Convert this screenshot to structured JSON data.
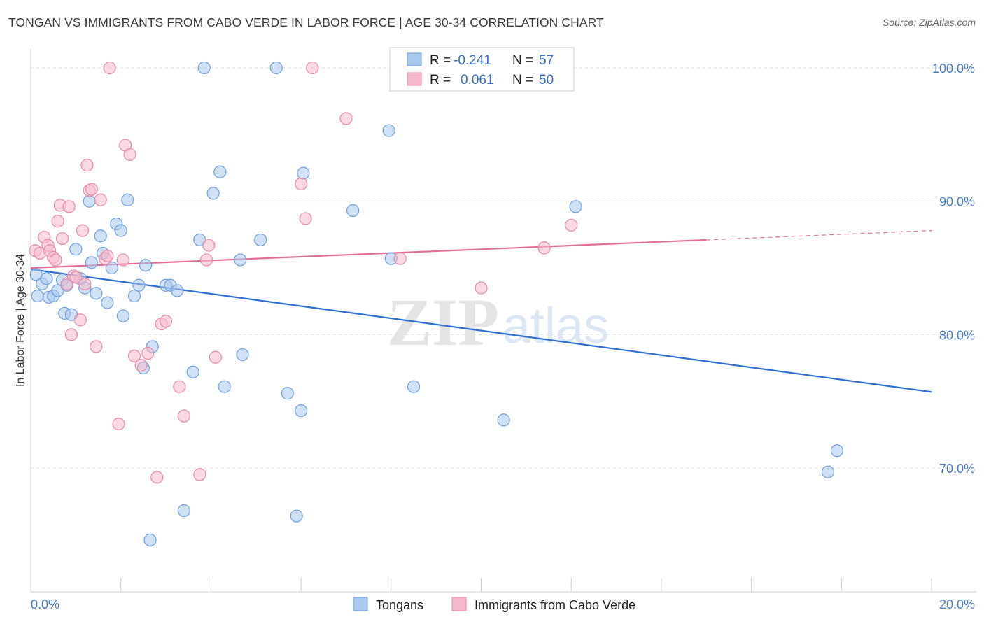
{
  "title": "TONGAN VS IMMIGRANTS FROM CABO VERDE IN LABOR FORCE | AGE 30-34 CORRELATION CHART",
  "source": "Source: ZipAtlas.com",
  "watermark_zip": "ZIP",
  "watermark_atlas": "atlas",
  "colors": {
    "blue_fill": "#a9c8ee",
    "blue_stroke": "#6f9fdc",
    "blue_line": "#2f6fd0",
    "pink_fill": "#f6b9cb",
    "pink_stroke": "#e889a8",
    "pink_line": "#e0709a",
    "grid": "#dddddd",
    "axis_text": "#4a7bc8"
  },
  "legend_top": {
    "rows": [
      {
        "r_label": "R =",
        "r_value": "-0.241",
        "n_label": "N =",
        "n_value": "57"
      },
      {
        "r_label": "R =",
        "r_value": "0.061",
        "n_label": "N =",
        "n_value": "50"
      }
    ]
  },
  "chart_data": {
    "type": "scatter",
    "title": "TONGAN VS IMMIGRANTS FROM CABO VERDE IN LABOR FORCE | AGE 30-34 CORRELATION CHART",
    "xlabel": "",
    "ylabel": "In Labor Force | Age 30-34",
    "xlim": [
      0,
      20
    ],
    "ylim": [
      60,
      101
    ],
    "x_tick_labels": [
      {
        "value": 0,
        "label": "0.0%"
      },
      {
        "value": 20,
        "label": "20.0%"
      }
    ],
    "y_tick_labels": [
      {
        "value": 100,
        "label": "100.0%"
      },
      {
        "value": 90,
        "label": "90.0%"
      },
      {
        "value": 80,
        "label": "80.0%"
      },
      {
        "value": 70,
        "label": "70.0%"
      }
    ],
    "series": [
      {
        "name": "Tongans",
        "color": "#a9c8ee",
        "points": [
          [
            0.12,
            84.5
          ],
          [
            0.25,
            83.8
          ],
          [
            0.35,
            84.2
          ],
          [
            0.4,
            82.8
          ],
          [
            0.5,
            82.9
          ],
          [
            0.6,
            83.3
          ],
          [
            0.7,
            84.1
          ],
          [
            0.75,
            81.6
          ],
          [
            0.8,
            83.7
          ],
          [
            0.9,
            81.5
          ],
          [
            1.0,
            86.4
          ],
          [
            1.1,
            84.2
          ],
          [
            1.2,
            83.5
          ],
          [
            1.3,
            90.0
          ],
          [
            1.35,
            85.4
          ],
          [
            1.45,
            83.1
          ],
          [
            1.55,
            87.4
          ],
          [
            1.6,
            86.1
          ],
          [
            1.7,
            82.4
          ],
          [
            1.8,
            85.0
          ],
          [
            1.9,
            88.3
          ],
          [
            2.0,
            87.8
          ],
          [
            2.05,
            81.4
          ],
          [
            2.15,
            90.1
          ],
          [
            2.3,
            82.9
          ],
          [
            2.4,
            83.7
          ],
          [
            2.55,
            85.2
          ],
          [
            2.7,
            79.1
          ],
          [
            3.0,
            83.7
          ],
          [
            3.1,
            83.7
          ],
          [
            3.25,
            83.3
          ],
          [
            3.6,
            77.2
          ],
          [
            3.75,
            87.1
          ],
          [
            3.85,
            100.0
          ],
          [
            4.05,
            90.6
          ],
          [
            4.2,
            92.2
          ],
          [
            4.3,
            76.1
          ],
          [
            4.65,
            85.6
          ],
          [
            4.7,
            78.5
          ],
          [
            5.1,
            87.1
          ],
          [
            5.45,
            100.0
          ],
          [
            5.7,
            75.6
          ],
          [
            6.0,
            74.3
          ],
          [
            6.05,
            92.1
          ],
          [
            7.15,
            89.3
          ],
          [
            7.95,
            95.3
          ],
          [
            8.0,
            85.7
          ],
          [
            8.5,
            76.1
          ],
          [
            10.5,
            73.6
          ],
          [
            12.1,
            89.6
          ],
          [
            17.7,
            69.7
          ],
          [
            17.9,
            71.3
          ],
          [
            3.4,
            66.8
          ],
          [
            5.9,
            66.4
          ],
          [
            2.65,
            64.6
          ],
          [
            2.5,
            77.5
          ],
          [
            0.15,
            82.9
          ]
        ]
      },
      {
        "name": "Immigrants from Cabo Verde",
        "color": "#f6b9cb",
        "points": [
          [
            0.1,
            86.3
          ],
          [
            0.2,
            86.1
          ],
          [
            0.3,
            87.3
          ],
          [
            0.38,
            86.7
          ],
          [
            0.42,
            86.3
          ],
          [
            0.5,
            85.8
          ],
          [
            0.55,
            85.6
          ],
          [
            0.6,
            88.5
          ],
          [
            0.65,
            89.7
          ],
          [
            0.7,
            87.2
          ],
          [
            0.8,
            83.8
          ],
          [
            0.85,
            89.6
          ],
          [
            0.9,
            80.0
          ],
          [
            0.95,
            84.4
          ],
          [
            1.0,
            84.3
          ],
          [
            1.1,
            81.1
          ],
          [
            1.15,
            87.8
          ],
          [
            1.25,
            92.7
          ],
          [
            1.3,
            90.8
          ],
          [
            1.35,
            90.9
          ],
          [
            1.45,
            79.1
          ],
          [
            1.55,
            90.1
          ],
          [
            1.65,
            85.7
          ],
          [
            1.75,
            100.0
          ],
          [
            1.95,
            73.3
          ],
          [
            2.05,
            85.6
          ],
          [
            2.1,
            94.2
          ],
          [
            2.2,
            93.5
          ],
          [
            2.3,
            78.4
          ],
          [
            2.45,
            77.7
          ],
          [
            2.6,
            78.6
          ],
          [
            2.8,
            69.3
          ],
          [
            2.9,
            80.8
          ],
          [
            3.0,
            81.0
          ],
          [
            3.3,
            76.1
          ],
          [
            3.4,
            73.9
          ],
          [
            3.75,
            69.5
          ],
          [
            3.9,
            85.6
          ],
          [
            3.95,
            86.7
          ],
          [
            4.1,
            78.3
          ],
          [
            6.0,
            91.3
          ],
          [
            6.1,
            88.7
          ],
          [
            6.25,
            100.0
          ],
          [
            7.0,
            96.2
          ],
          [
            8.2,
            85.7
          ],
          [
            10.0,
            83.5
          ],
          [
            11.4,
            86.5
          ],
          [
            12.0,
            88.2
          ],
          [
            1.2,
            83.8
          ],
          [
            1.7,
            85.9
          ]
        ]
      }
    ],
    "trend_lines": [
      {
        "series": "Tongans",
        "x": [
          0,
          20
        ],
        "y": [
          84.9,
          75.7
        ]
      },
      {
        "series": "Immigrants from Cabo Verde",
        "x": [
          0,
          15
        ],
        "y": [
          85.0,
          87.1
        ],
        "dashed_to": [
          20,
          87.8
        ]
      }
    ],
    "legend": [
      "Tongans",
      "Immigrants from Cabo Verde"
    ]
  }
}
